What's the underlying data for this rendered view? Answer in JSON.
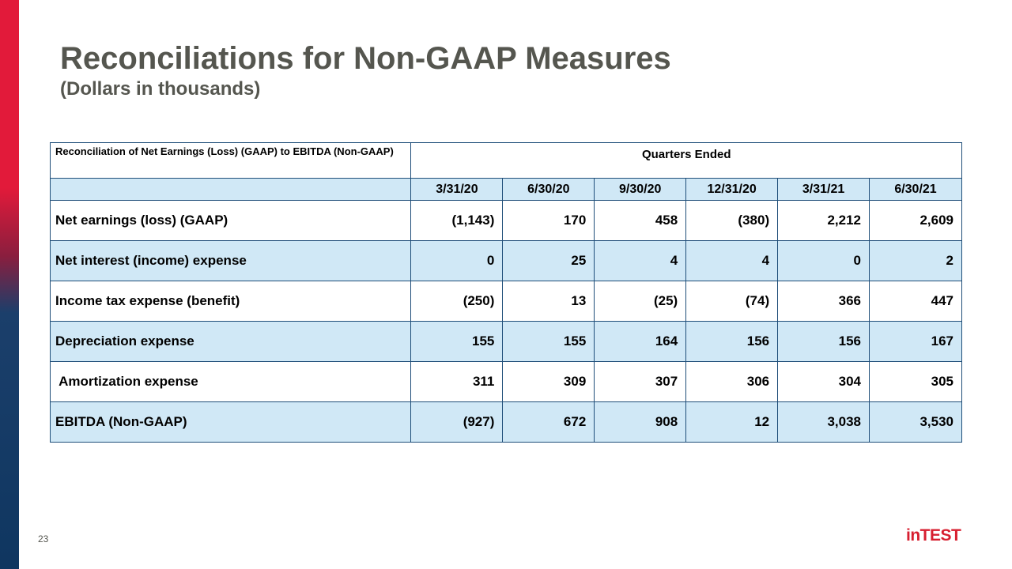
{
  "slide": {
    "title": "Reconciliations for Non-GAAP Measures",
    "subtitle": "(Dollars in thousands)",
    "page_number": "23",
    "logo_text": "inTEST"
  },
  "table": {
    "caption": "Reconciliation of Net Earnings (Loss) (GAAP)  to EBITDA (Non-GAAP)",
    "group_header": "Quarters Ended",
    "columns": [
      "3/31/20",
      "6/30/20",
      "9/30/20",
      "12/31/20",
      "3/31/21",
      "6/30/21"
    ],
    "rows": [
      {
        "label": "Net earnings (loss) (GAAP)",
        "values": [
          "(1,143)",
          "170",
          "458",
          "(380)",
          "2,212",
          "2,609"
        ]
      },
      {
        "label": "Net interest (income) expense",
        "values": [
          "0",
          "25",
          "4",
          "4",
          "0",
          "2"
        ]
      },
      {
        "label": "Income tax expense (benefit)",
        "values": [
          "(250)",
          "13",
          "(25)",
          "(74)",
          "366",
          "447"
        ]
      },
      {
        "label": "Depreciation expense",
        "values": [
          "155",
          "155",
          "164",
          "156",
          "156",
          "167"
        ]
      },
      {
        "label": " Amortization expense",
        "values": [
          "311",
          "309",
          "307",
          "306",
          "304",
          "305"
        ]
      },
      {
        "label": "EBITDA (Non-GAAP)",
        "values": [
          "(927)",
          "672",
          "908",
          "12",
          "3,038",
          "3,530"
        ]
      }
    ]
  },
  "colors": {
    "accent_red": "#e21a3a",
    "accent_navy": "#0f3660",
    "row_shade": "#d0e8f6",
    "title_gray": "#55564f"
  }
}
